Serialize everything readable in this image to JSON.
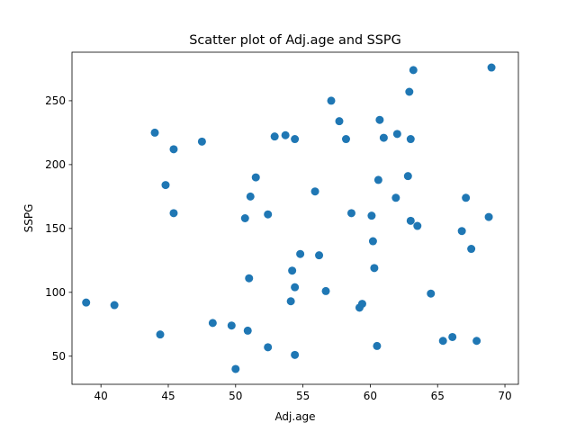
{
  "chart_data": {
    "type": "scatter",
    "title": "Scatter plot of Adj.age and SSPG",
    "xlabel": "Adj.age",
    "ylabel": "SSPG",
    "xlim": [
      37.85,
      71.0
    ],
    "ylim": [
      28,
      288
    ],
    "xticks": [
      40,
      45,
      50,
      55,
      60,
      65,
      70
    ],
    "yticks": [
      50,
      100,
      150,
      200,
      250
    ],
    "grid": false,
    "marker_color": "#1f77b4",
    "series": [
      {
        "points": [
          [
            38.9,
            92
          ],
          [
            41.0,
            90
          ],
          [
            44.0,
            225
          ],
          [
            44.4,
            67
          ],
          [
            44.8,
            184
          ],
          [
            45.4,
            212
          ],
          [
            45.4,
            162
          ],
          [
            47.5,
            218
          ],
          [
            48.3,
            76
          ],
          [
            49.7,
            74
          ],
          [
            50.0,
            40
          ],
          [
            50.7,
            158
          ],
          [
            50.9,
            70
          ],
          [
            51.0,
            111
          ],
          [
            51.1,
            175
          ],
          [
            51.5,
            190
          ],
          [
            52.4,
            161
          ],
          [
            52.4,
            57
          ],
          [
            52.9,
            222
          ],
          [
            53.7,
            223
          ],
          [
            54.1,
            93
          ],
          [
            54.2,
            117
          ],
          [
            54.4,
            220
          ],
          [
            54.4,
            104
          ],
          [
            54.4,
            51
          ],
          [
            54.8,
            130
          ],
          [
            55.9,
            179
          ],
          [
            56.2,
            129
          ],
          [
            56.7,
            101
          ],
          [
            57.1,
            250
          ],
          [
            57.7,
            234
          ],
          [
            58.2,
            220
          ],
          [
            58.6,
            162
          ],
          [
            59.2,
            88
          ],
          [
            59.4,
            91
          ],
          [
            60.1,
            160
          ],
          [
            60.2,
            140
          ],
          [
            60.3,
            119
          ],
          [
            60.5,
            58
          ],
          [
            60.6,
            188
          ],
          [
            60.7,
            235
          ],
          [
            61.0,
            221
          ],
          [
            61.9,
            174
          ],
          [
            62.0,
            224
          ],
          [
            62.8,
            191
          ],
          [
            62.9,
            257
          ],
          [
            63.0,
            220
          ],
          [
            63.0,
            156
          ],
          [
            63.2,
            274
          ],
          [
            63.5,
            152
          ],
          [
            64.5,
            99
          ],
          [
            65.4,
            62
          ],
          [
            66.1,
            65
          ],
          [
            66.8,
            148
          ],
          [
            67.1,
            174
          ],
          [
            67.5,
            134
          ],
          [
            67.9,
            62
          ],
          [
            68.8,
            159
          ],
          [
            69.0,
            276
          ]
        ]
      }
    ]
  }
}
